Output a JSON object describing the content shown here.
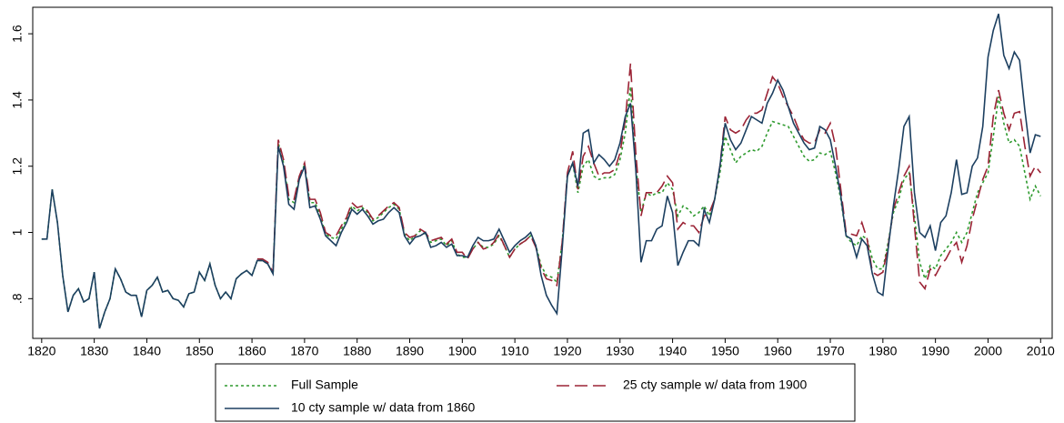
{
  "chart_data": {
    "type": "line",
    "x": [
      1820,
      1821,
      1822,
      1823,
      1824,
      1825,
      1826,
      1827,
      1828,
      1829,
      1830,
      1831,
      1832,
      1833,
      1834,
      1835,
      1836,
      1837,
      1838,
      1839,
      1840,
      1841,
      1842,
      1843,
      1844,
      1845,
      1846,
      1847,
      1848,
      1849,
      1850,
      1851,
      1852,
      1853,
      1854,
      1855,
      1856,
      1857,
      1858,
      1859,
      1860,
      1861,
      1862,
      1863,
      1864,
      1865,
      1866,
      1867,
      1868,
      1869,
      1870,
      1871,
      1872,
      1873,
      1874,
      1875,
      1876,
      1877,
      1878,
      1879,
      1880,
      1881,
      1882,
      1883,
      1884,
      1885,
      1886,
      1887,
      1888,
      1889,
      1890,
      1891,
      1892,
      1893,
      1894,
      1895,
      1896,
      1897,
      1898,
      1899,
      1900,
      1901,
      1902,
      1903,
      1904,
      1905,
      1906,
      1907,
      1908,
      1909,
      1910,
      1911,
      1912,
      1913,
      1914,
      1915,
      1916,
      1917,
      1918,
      1919,
      1920,
      1921,
      1922,
      1923,
      1924,
      1925,
      1926,
      1927,
      1928,
      1929,
      1930,
      1931,
      1932,
      1933,
      1934,
      1935,
      1936,
      1937,
      1938,
      1939,
      1940,
      1941,
      1942,
      1943,
      1944,
      1945,
      1946,
      1947,
      1948,
      1949,
      1950,
      1951,
      1952,
      1953,
      1954,
      1955,
      1956,
      1957,
      1958,
      1959,
      1960,
      1961,
      1962,
      1963,
      1964,
      1965,
      1966,
      1967,
      1968,
      1969,
      1970,
      1971,
      1972,
      1973,
      1974,
      1975,
      1976,
      1977,
      1978,
      1979,
      1980,
      1981,
      1982,
      1983,
      1984,
      1985,
      1986,
      1987,
      1988,
      1989,
      1990,
      1991,
      1992,
      1993,
      1994,
      1995,
      1996,
      1997,
      1998,
      1999,
      2000,
      2001,
      2002,
      2003,
      2004,
      2005,
      2006,
      2007,
      2008,
      2009,
      2010
    ],
    "series": [
      {
        "name": "Full Sample",
        "color": "#2e9a2e",
        "dash": "dotted",
        "values": [
          0.98,
          0.98,
          1.13,
          1.03,
          0.87,
          0.76,
          0.81,
          0.83,
          0.79,
          0.8,
          0.88,
          0.71,
          0.76,
          0.8,
          0.89,
          0.86,
          0.82,
          0.81,
          0.81,
          0.745,
          0.825,
          0.84,
          0.865,
          0.82,
          0.825,
          0.8,
          0.795,
          0.775,
          0.815,
          0.82,
          0.88,
          0.855,
          0.905,
          0.84,
          0.8,
          0.82,
          0.8,
          0.86,
          0.875,
          0.885,
          0.87,
          0.915,
          0.915,
          0.905,
          0.875,
          1.27,
          1.21,
          1.1,
          1.09,
          1.165,
          1.205,
          1.09,
          1.09,
          1.05,
          0.995,
          0.985,
          0.98,
          1.01,
          1.04,
          1.08,
          1.065,
          1.075,
          1.06,
          1.035,
          1.045,
          1.06,
          1.075,
          1.085,
          1.07,
          0.995,
          0.975,
          0.99,
          1.005,
          0.995,
          0.97,
          0.975,
          0.98,
          0.96,
          0.975,
          0.935,
          0.925,
          0.925,
          0.95,
          0.97,
          0.955,
          0.955,
          0.965,
          0.99,
          0.96,
          0.925,
          0.95,
          0.965,
          0.975,
          0.99,
          0.96,
          0.9,
          0.87,
          0.865,
          0.85,
          0.97,
          1.17,
          1.21,
          1.12,
          1.2,
          1.22,
          1.17,
          1.16,
          1.165,
          1.165,
          1.175,
          1.22,
          1.3,
          1.44,
          1.2,
          1.06,
          1.12,
          1.11,
          1.12,
          1.12,
          1.15,
          1.13,
          1.05,
          1.08,
          1.07,
          1.05,
          1.06,
          1.08,
          1.05,
          1.1,
          1.18,
          1.29,
          1.25,
          1.21,
          1.23,
          1.24,
          1.25,
          1.245,
          1.26,
          1.3,
          1.335,
          1.33,
          1.325,
          1.32,
          1.29,
          1.26,
          1.23,
          1.215,
          1.22,
          1.24,
          1.235,
          1.245,
          1.18,
          1.1,
          0.99,
          0.97,
          0.96,
          0.99,
          0.98,
          0.92,
          0.89,
          0.89,
          0.97,
          1.06,
          1.1,
          1.16,
          1.18,
          1.05,
          0.91,
          0.86,
          0.9,
          0.89,
          0.93,
          0.95,
          0.97,
          1.0,
          0.97,
          1.0,
          1.06,
          1.12,
          1.15,
          1.18,
          1.29,
          1.41,
          1.33,
          1.27,
          1.28,
          1.26,
          1.18,
          1.1,
          1.14,
          1.11
        ]
      },
      {
        "name": "25 cty sample w/ data from 1900",
        "color": "#9b2335",
        "dash": "dashed",
        "values": [
          null,
          null,
          null,
          null,
          null,
          null,
          null,
          null,
          null,
          null,
          null,
          null,
          null,
          null,
          null,
          null,
          null,
          null,
          null,
          null,
          null,
          null,
          null,
          null,
          null,
          null,
          null,
          null,
          null,
          null,
          null,
          null,
          null,
          null,
          null,
          null,
          null,
          null,
          null,
          null,
          null,
          0.92,
          0.92,
          0.91,
          0.88,
          1.28,
          1.22,
          1.11,
          1.1,
          1.17,
          1.21,
          1.1,
          1.1,
          1.06,
          1.0,
          0.99,
          0.99,
          1.02,
          1.045,
          1.09,
          1.075,
          1.08,
          1.065,
          1.04,
          1.05,
          1.065,
          1.08,
          1.09,
          1.075,
          1.0,
          0.985,
          0.99,
          1.01,
          1.0,
          0.975,
          0.98,
          0.985,
          0.965,
          0.98,
          0.94,
          0.94,
          0.92,
          0.95,
          0.97,
          0.95,
          0.955,
          0.97,
          0.995,
          0.96,
          0.925,
          0.95,
          0.965,
          0.975,
          0.99,
          0.955,
          0.89,
          0.86,
          0.855,
          0.84,
          0.97,
          1.18,
          1.245,
          1.13,
          1.23,
          1.26,
          1.21,
          1.17,
          1.18,
          1.18,
          1.19,
          1.24,
          1.34,
          1.51,
          1.24,
          1.05,
          1.12,
          1.12,
          1.12,
          1.14,
          1.17,
          1.15,
          1.01,
          1.03,
          1.02,
          1.02,
          1.0,
          1.05,
          1.06,
          1.1,
          1.2,
          1.35,
          1.31,
          1.3,
          1.31,
          1.34,
          1.36,
          1.36,
          1.37,
          1.42,
          1.47,
          1.45,
          1.41,
          1.38,
          1.35,
          1.31,
          1.28,
          1.27,
          1.27,
          1.31,
          1.3,
          1.33,
          1.26,
          1.13,
          1.0,
          0.995,
          0.99,
          1.03,
          0.98,
          0.88,
          0.87,
          0.88,
          0.96,
          1.07,
          1.12,
          1.17,
          1.2,
          1.02,
          0.85,
          0.83,
          0.89,
          0.87,
          0.9,
          0.92,
          0.95,
          0.97,
          0.91,
          0.96,
          1.04,
          1.1,
          1.16,
          1.2,
          1.35,
          1.43,
          1.36,
          1.31,
          1.36,
          1.365,
          1.26,
          1.17,
          1.2,
          1.18
        ]
      },
      {
        "name": "10 cty sample w/ data from 1860",
        "color": "#1c3f60",
        "dash": "solid",
        "values": [
          0.98,
          0.98,
          1.13,
          1.03,
          0.87,
          0.76,
          0.81,
          0.83,
          0.79,
          0.8,
          0.88,
          0.71,
          0.76,
          0.8,
          0.89,
          0.86,
          0.82,
          0.81,
          0.81,
          0.745,
          0.825,
          0.84,
          0.865,
          0.82,
          0.825,
          0.8,
          0.795,
          0.775,
          0.815,
          0.82,
          0.88,
          0.855,
          0.905,
          0.84,
          0.8,
          0.82,
          0.8,
          0.86,
          0.875,
          0.885,
          0.87,
          0.915,
          0.915,
          0.905,
          0.875,
          1.26,
          1.2,
          1.085,
          1.07,
          1.16,
          1.2,
          1.075,
          1.08,
          1.04,
          0.99,
          0.975,
          0.96,
          1.0,
          1.03,
          1.07,
          1.055,
          1.07,
          1.05,
          1.025,
          1.035,
          1.04,
          1.06,
          1.075,
          1.06,
          0.99,
          0.965,
          0.985,
          0.99,
          1.0,
          0.955,
          0.96,
          0.97,
          0.955,
          0.965,
          0.93,
          0.93,
          0.925,
          0.96,
          0.985,
          0.975,
          0.975,
          0.98,
          1.01,
          0.975,
          0.94,
          0.96,
          0.975,
          0.985,
          1.0,
          0.96,
          0.87,
          0.81,
          0.78,
          0.755,
          0.95,
          1.17,
          1.21,
          1.14,
          1.3,
          1.31,
          1.21,
          1.235,
          1.22,
          1.2,
          1.22,
          1.27,
          1.35,
          1.39,
          1.19,
          0.91,
          0.975,
          0.975,
          1.01,
          1.02,
          1.11,
          1.06,
          0.9,
          0.94,
          0.975,
          0.975,
          0.96,
          1.07,
          1.03,
          1.1,
          1.2,
          1.33,
          1.28,
          1.25,
          1.27,
          1.31,
          1.35,
          1.34,
          1.33,
          1.39,
          1.42,
          1.46,
          1.43,
          1.38,
          1.33,
          1.3,
          1.27,
          1.25,
          1.255,
          1.32,
          1.31,
          1.28,
          1.2,
          1.11,
          0.99,
          0.98,
          0.925,
          0.98,
          0.96,
          0.875,
          0.82,
          0.81,
          0.95,
          1.08,
          1.19,
          1.32,
          1.35,
          1.12,
          1.0,
          0.985,
          1.02,
          0.945,
          1.03,
          1.05,
          1.12,
          1.22,
          1.115,
          1.12,
          1.2,
          1.225,
          1.32,
          1.53,
          1.61,
          1.66,
          1.535,
          1.495,
          1.545,
          1.52,
          1.37,
          1.24,
          1.295,
          1.29
        ]
      }
    ],
    "xlim": [
      1818.3,
      2012.2
    ],
    "xticks": [
      1820,
      1830,
      1840,
      1850,
      1860,
      1870,
      1880,
      1890,
      1900,
      1910,
      1920,
      1930,
      1940,
      1950,
      1960,
      1970,
      1980,
      1990,
      2000,
      2010
    ],
    "ylim": [
      0.68,
      1.68
    ],
    "yticks": [
      {
        "value": 0.8,
        "label": ".8"
      },
      1,
      1.2,
      1.4,
      1.6
    ],
    "grid": false
  }
}
